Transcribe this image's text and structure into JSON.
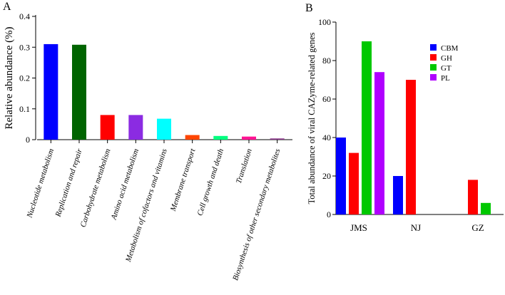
{
  "chart_data": [
    {
      "panel": "A",
      "type": "bar",
      "title": "",
      "xlabel": "",
      "ylabel": "Relative abundance (%)",
      "ylim": [
        0,
        0.4
      ],
      "yticks": [
        "0",
        "0.1",
        "0.2",
        "0.3",
        "0.4"
      ],
      "categories": [
        "Nucleotide metabolism",
        "Replication and repair",
        "Carbohydrate metabolism",
        "Amino acid metabolism",
        "Metabolism of cofactors and vitamins",
        "Membrane transport",
        "Cell growth and death",
        "Translation",
        "Biosynthesis of other secondary metabolites"
      ],
      "values": [
        0.31,
        0.308,
        0.08,
        0.08,
        0.068,
        0.015,
        0.012,
        0.01,
        0.004
      ],
      "colors": [
        "#0000ff",
        "#006400",
        "#ff0000",
        "#8b2be2",
        "#00ffff",
        "#ff4500",
        "#00ff7f",
        "#ff1493",
        "#8b3a8b"
      ]
    },
    {
      "panel": "B",
      "type": "bar",
      "title": "",
      "xlabel": "",
      "ylabel": "Total abundance of viral CAZyme-related genes",
      "ylim": [
        0,
        100
      ],
      "yticks": [
        "0",
        "20",
        "40",
        "60",
        "80",
        "100"
      ],
      "categories": [
        "JMS",
        "NJ",
        "GZ"
      ],
      "legend_position": "top-right",
      "series": [
        {
          "name": "CBM",
          "color": "#0000ff",
          "values": [
            40,
            20,
            0
          ]
        },
        {
          "name": "GH",
          "color": "#ff0000",
          "values": [
            32,
            70,
            18
          ]
        },
        {
          "name": "GT",
          "color": "#00c800",
          "values": [
            90,
            0,
            6
          ]
        },
        {
          "name": "PL",
          "color": "#b000ff",
          "values": [
            74,
            0,
            0
          ]
        }
      ]
    }
  ]
}
